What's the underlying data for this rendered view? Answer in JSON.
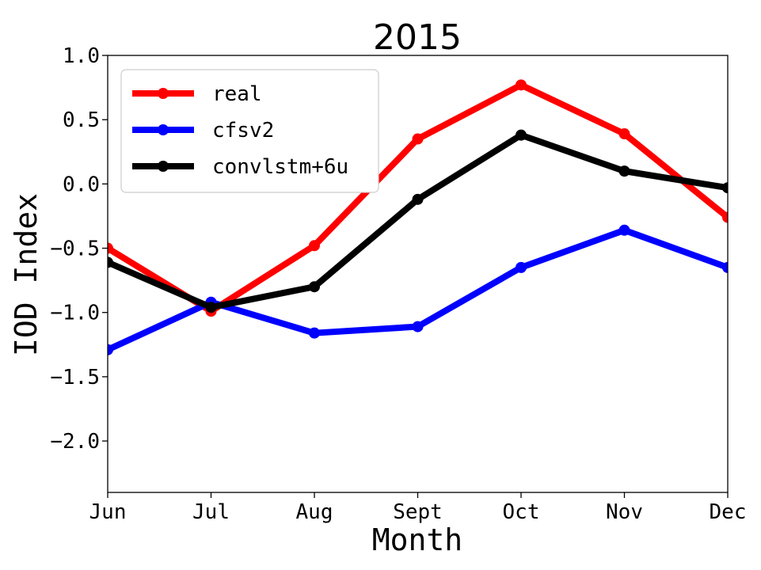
{
  "chart_data": {
    "type": "line",
    "title": "2015",
    "xlabel": "Month",
    "ylabel": "IOD Index",
    "categories": [
      "Jun",
      "Jul",
      "Aug",
      "Sept",
      "Oct",
      "Nov",
      "Dec"
    ],
    "ylim": [
      -2.4,
      1.0
    ],
    "yticks": [
      1.0,
      0.5,
      0.0,
      -0.5,
      -1.0,
      -1.5,
      -2.0
    ],
    "ytick_labels": [
      "1.0",
      "0.5",
      "0.0",
      "−0.5",
      "−1.0",
      "−1.5",
      "−2.0"
    ],
    "grid": false,
    "legend_position": "top-left",
    "series": [
      {
        "name": "real",
        "color": "#ff0000",
        "values": [
          -0.5,
          -0.99,
          -0.48,
          0.35,
          0.77,
          0.39,
          -0.26
        ]
      },
      {
        "name": "cfsv2",
        "color": "#0000ff",
        "values": [
          -1.29,
          -0.92,
          -1.16,
          -1.11,
          -0.65,
          -0.36,
          -0.65
        ]
      },
      {
        "name": "convlstm+6u",
        "color": "#000000",
        "values": [
          -0.61,
          -0.96,
          -0.8,
          -0.12,
          0.38,
          0.1,
          -0.03
        ]
      }
    ]
  }
}
